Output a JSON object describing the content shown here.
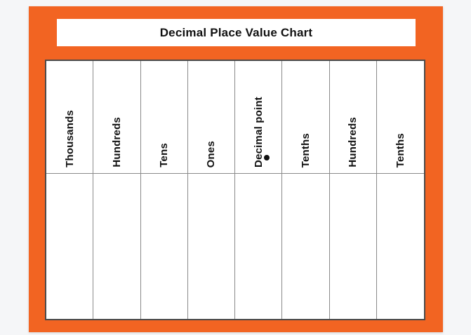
{
  "card": {
    "title": "Decimal Place Value Chart"
  },
  "table": {
    "columns": [
      "Thousands",
      "Hundreds",
      "Tens",
      "Ones",
      "Decimal point",
      "Tenths",
      "Hundreds",
      "Tenths"
    ],
    "decimal_marker_icon": "filled-dot"
  },
  "colors": {
    "frame_orange": "#f26422",
    "page_background": "#f5f6f8",
    "panel_white": "#ffffff",
    "table_border": "#4a4a4a",
    "grid_line": "#8a8a8a",
    "text": "#111111"
  }
}
